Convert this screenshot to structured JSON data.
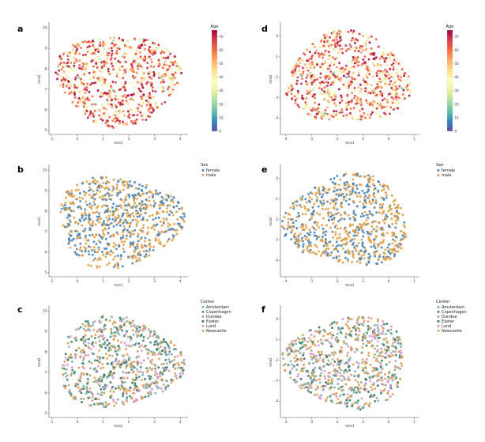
{
  "colors": {
    "female": "#4c86b8",
    "male": "#e0a049",
    "Amsterdam": "#7fb2a6",
    "Copenhagen": "#3d8f80",
    "Dundee": "#9fa5a5",
    "Exeter": "#3f7466",
    "Lund": "#d79bd0",
    "Newcastle": "#d9a15a"
  },
  "chart_data": [
    {
      "type": "scatter",
      "panel": "a",
      "xlabel": "tsne1",
      "ylabel": "tsne2",
      "xlim": [
        -1.1,
        4.3
      ],
      "ylim": [
        4.8,
        10.2
      ],
      "xticks": [
        "-1",
        "0",
        "1",
        "2",
        "3",
        "4"
      ],
      "yticks": [
        "5",
        "6",
        "7",
        "8",
        "9",
        "10"
      ],
      "color_by": "Age",
      "legend_title": "Age",
      "colorbar": {
        "min": 0,
        "max": 75,
        "ticks": [
          "0",
          "10",
          "20",
          "30",
          "40",
          "50",
          "60",
          "70"
        ]
      },
      "n_points": 750,
      "center": [
        1.6,
        7.5
      ],
      "radius": [
        2.6,
        2.4
      ]
    },
    {
      "type": "scatter",
      "panel": "b",
      "xlabel": "tsne1",
      "ylabel": "tsne2",
      "xlim": [
        -1.1,
        4.3
      ],
      "ylim": [
        4.8,
        10.2
      ],
      "xticks": [
        "-1",
        "0",
        "1",
        "2",
        "3",
        "4"
      ],
      "yticks": [
        "5",
        "6",
        "7",
        "8",
        "9",
        "10"
      ],
      "color_by": "Sex",
      "legend_title": "Sex",
      "legend": [
        "female",
        "male"
      ],
      "n_points": 750,
      "center": [
        1.6,
        7.5
      ],
      "radius": [
        2.6,
        2.4
      ]
    },
    {
      "type": "scatter",
      "panel": "c",
      "xlabel": "tsne1",
      "ylabel": "tsne2",
      "xlim": [
        -1.1,
        4.3
      ],
      "ylim": [
        4.8,
        10.2
      ],
      "xticks": [
        "-1",
        "0",
        "1",
        "2",
        "3",
        "4"
      ],
      "yticks": [
        "5",
        "6",
        "7",
        "8",
        "9",
        "10"
      ],
      "color_by": "Center",
      "legend_title": "Center",
      "legend": [
        "Amsterdam",
        "Copenhagen",
        "Dundee",
        "Exeter",
        "Lund",
        "Newcastle"
      ],
      "n_points": 750,
      "center": [
        1.6,
        7.5
      ],
      "radius": [
        2.6,
        2.4
      ]
    },
    {
      "type": "scatter",
      "panel": "d",
      "xlabel": "tsne1",
      "ylabel": "tsne2",
      "xlim": [
        -4.2,
        1.2
      ],
      "ylim": [
        -4.8,
        0.6
      ],
      "xticks": [
        "-4",
        "-3",
        "-2",
        "-1",
        "0",
        "1"
      ],
      "yticks": [
        "-4",
        "-3",
        "-2",
        "-1",
        "0"
      ],
      "color_by": "Age",
      "legend_title": "Age",
      "colorbar": {
        "min": 0,
        "max": 75,
        "ticks": [
          "0",
          "10",
          "20",
          "30",
          "40",
          "50",
          "60",
          "70"
        ]
      },
      "n_points": 750,
      "center": [
        -1.6,
        -2.1
      ],
      "radius": [
        2.6,
        2.4
      ]
    },
    {
      "type": "scatter",
      "panel": "e",
      "xlabel": "tsne1",
      "ylabel": "tsne2",
      "xlim": [
        -4.2,
        1.2
      ],
      "ylim": [
        -4.8,
        0.6
      ],
      "xticks": [
        "-4",
        "-3",
        "-2",
        "-1",
        "0",
        "1"
      ],
      "yticks": [
        "-4",
        "-3",
        "-2",
        "-1",
        "0"
      ],
      "color_by": "Sex",
      "legend_title": "Sex",
      "legend": [
        "female",
        "male"
      ],
      "n_points": 750,
      "center": [
        -1.6,
        -2.1
      ],
      "radius": [
        2.6,
        2.4
      ]
    },
    {
      "type": "scatter",
      "panel": "f",
      "xlabel": "tsne1",
      "ylabel": "tsne2",
      "xlim": [
        -4.2,
        1.2
      ],
      "ylim": [
        -4.8,
        0.6
      ],
      "xticks": [
        "-4",
        "-3",
        "-2",
        "-1",
        "0",
        "1"
      ],
      "yticks": [
        "-4",
        "-3",
        "-2",
        "-1",
        "0"
      ],
      "color_by": "Center",
      "legend_title": "Center",
      "legend": [
        "Amsterdam",
        "Copenhagen",
        "Dundee",
        "Exeter",
        "Lund",
        "Newcastle"
      ],
      "n_points": 750,
      "center": [
        -1.6,
        -2.1
      ],
      "radius": [
        2.6,
        2.4
      ]
    }
  ]
}
